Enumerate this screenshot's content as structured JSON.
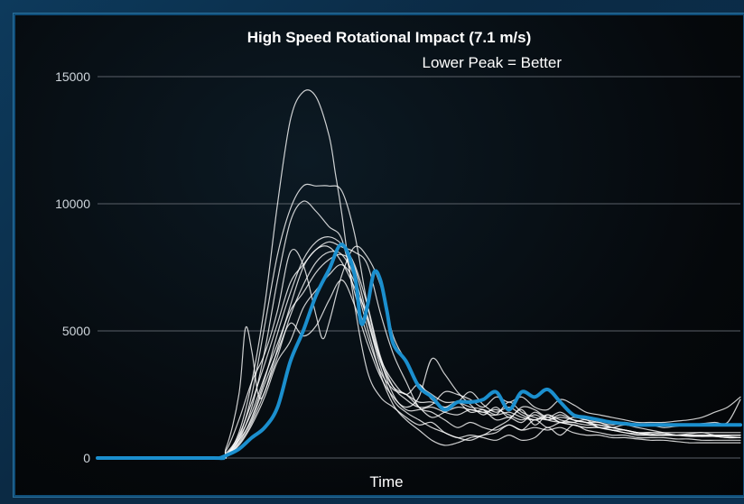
{
  "chart_data": {
    "type": "line",
    "title": "High Speed Rotational Impact (7.1 m/s)",
    "subtitle": "Lower Peak = Better",
    "xlabel": "Time",
    "ylabel": "",
    "ylim": [
      0,
      15000
    ],
    "yticks": [
      0,
      5000,
      10000,
      15000
    ],
    "xlim": [
      0,
      100
    ],
    "grid": true,
    "colors": {
      "highlight": "#1b8fce",
      "other": "#ffffff",
      "grid": "#5a6068"
    },
    "series": [
      {
        "highlight": true,
        "x": [
          0,
          18,
          19,
          20,
          22,
          24,
          26,
          28,
          30,
          32,
          34,
          36,
          38,
          40,
          41,
          42,
          43,
          44,
          45,
          46,
          48,
          50,
          52,
          54,
          56,
          58,
          60,
          62,
          64,
          66,
          68,
          70,
          72,
          74,
          76,
          78,
          80,
          82,
          84,
          86,
          88,
          90,
          92,
          94,
          96,
          98,
          100
        ],
        "y": [
          0,
          0,
          0,
          100,
          350,
          800,
          1200,
          2000,
          3800,
          5000,
          6400,
          7400,
          8400,
          7200,
          5300,
          6000,
          7300,
          7000,
          5800,
          4500,
          3800,
          2800,
          2400,
          1900,
          2200,
          2200,
          2300,
          2600,
          1900,
          2600,
          2400,
          2700,
          2200,
          1700,
          1600,
          1500,
          1400,
          1350,
          1300,
          1300,
          1300,
          1300,
          1300,
          1300,
          1300,
          1300,
          1300
        ]
      },
      {
        "x": [
          0,
          18,
          20,
          22,
          24,
          26,
          28,
          30,
          32,
          34,
          36,
          37,
          38,
          40,
          42,
          44,
          46,
          48,
          50,
          52,
          54,
          56,
          58,
          60,
          62,
          64,
          66,
          68,
          70,
          72,
          74,
          76,
          78,
          80,
          82,
          84,
          86,
          88,
          90,
          92,
          94,
          96,
          98,
          100
        ],
        "y": [
          0,
          0,
          100,
          1000,
          3000,
          6000,
          10000,
          13300,
          14400,
          14200,
          12700,
          11200,
          9600,
          6000,
          3400,
          2400,
          2000,
          1600,
          1300,
          1400,
          1000,
          800,
          700,
          900,
          1000,
          1300,
          1100,
          1500,
          1200,
          1400,
          1400,
          1500,
          1200,
          1200,
          1100,
          1000,
          900,
          900,
          900,
          950,
          1000,
          900,
          850,
          800
        ]
      },
      {
        "x": [
          0,
          18,
          20,
          22,
          24,
          26,
          28,
          30,
          32,
          34,
          36,
          38,
          40,
          42,
          44,
          46,
          48,
          50,
          52,
          54,
          56,
          58,
          60,
          62,
          64,
          66,
          68,
          70,
          72,
          74,
          76,
          78,
          80,
          82,
          84,
          86,
          88,
          90,
          92,
          94,
          96,
          98,
          100
        ],
        "y": [
          0,
          0,
          100,
          800,
          2500,
          5200,
          8000,
          9800,
          10700,
          10700,
          10700,
          10500,
          8800,
          6000,
          3900,
          2500,
          1900,
          1900,
          2000,
          1800,
          1700,
          1900,
          1800,
          1900,
          1700,
          1500,
          1700,
          1500,
          1700,
          1500,
          1400,
          1400,
          1200,
          1100,
          1000,
          950,
          900,
          900,
          900,
          900,
          900,
          900,
          900
        ]
      },
      {
        "x": [
          0,
          18,
          20,
          22,
          24,
          26,
          28,
          30,
          32,
          34,
          36,
          38,
          40,
          42,
          44,
          46,
          48,
          50,
          52,
          54,
          56,
          58,
          60,
          62,
          64,
          66,
          68,
          70,
          72,
          74,
          76,
          78,
          80,
          82,
          84,
          86,
          88,
          90,
          92,
          94,
          96,
          98,
          100
        ],
        "y": [
          0,
          0,
          100,
          700,
          2000,
          4200,
          7000,
          9300,
          10100,
          9700,
          9100,
          8600,
          6500,
          4800,
          3400,
          2700,
          2500,
          2200,
          2200,
          2000,
          2200,
          1800,
          1900,
          1700,
          1800,
          1600,
          1500,
          1700,
          1500,
          1400,
          1300,
          1300,
          1200,
          1100,
          1000,
          1000,
          950,
          900,
          900,
          900,
          900,
          900,
          900
        ]
      },
      {
        "x": [
          0,
          18,
          20,
          22,
          23,
          24,
          25,
          26,
          28,
          30,
          32,
          34,
          36,
          38,
          40,
          42,
          44,
          46,
          48,
          50,
          52,
          54,
          56,
          58,
          60,
          62,
          64,
          66,
          68,
          70,
          72,
          74,
          76,
          78,
          80,
          82,
          84,
          86,
          88,
          90,
          92,
          94,
          96,
          98,
          100
        ],
        "y": [
          0,
          0,
          400,
          2500,
          5100,
          4200,
          2500,
          2600,
          4300,
          6000,
          7500,
          8200,
          8300,
          7700,
          6700,
          5600,
          3800,
          2800,
          2500,
          2000,
          1600,
          1800,
          2000,
          1900,
          1800,
          1700,
          2200,
          1800,
          1600,
          1500,
          1600,
          1500,
          1400,
          1200,
          1100,
          1100,
          1000,
          1000,
          1000,
          1000,
          1000,
          1000,
          1000,
          1000,
          1000
        ]
      },
      {
        "x": [
          0,
          18,
          20,
          22,
          24,
          26,
          28,
          30,
          32,
          34,
          35,
          36,
          38,
          40,
          42,
          44,
          46,
          48,
          50,
          52,
          54,
          56,
          58,
          60,
          62,
          64,
          66,
          68,
          70,
          72,
          74,
          76,
          78,
          80,
          82,
          84,
          86,
          88,
          90,
          92,
          94,
          96,
          98,
          100
        ],
        "y": [
          0,
          0,
          300,
          1500,
          3000,
          4100,
          5800,
          8100,
          7600,
          5600,
          4700,
          5300,
          7200,
          8300,
          7900,
          6800,
          4800,
          3800,
          2900,
          2500,
          2200,
          2200,
          2000,
          1900,
          1500,
          1600,
          1400,
          1800,
          1500,
          1400,
          1300,
          1200,
          1200,
          1100,
          1000,
          900,
          900,
          900,
          900,
          900,
          900,
          900,
          900,
          900
        ]
      },
      {
        "x": [
          0,
          18,
          20,
          22,
          24,
          26,
          28,
          30,
          32,
          34,
          36,
          38,
          40,
          42,
          44,
          46,
          48,
          50,
          52,
          54,
          56,
          58,
          60,
          62,
          64,
          66,
          68,
          70,
          72,
          74,
          76,
          78,
          80,
          82,
          84,
          86,
          88,
          90,
          92,
          94,
          96,
          98,
          100
        ],
        "y": [
          0,
          0,
          200,
          900,
          2200,
          3700,
          5300,
          6900,
          7600,
          8200,
          8500,
          8300,
          8100,
          7600,
          5700,
          4100,
          3000,
          2000,
          1800,
          1500,
          1200,
          1400,
          1200,
          1100,
          1300,
          1100,
          1200,
          1100,
          1200,
          1000,
          900,
          900,
          800,
          800,
          750,
          700,
          700,
          650,
          600,
          600,
          600,
          600,
          600
        ]
      },
      {
        "x": [
          0,
          18,
          20,
          22,
          24,
          26,
          28,
          30,
          32,
          34,
          36,
          38,
          40,
          42,
          44,
          46,
          48,
          50,
          52,
          54,
          56,
          58,
          60,
          62,
          64,
          66,
          68,
          70,
          72,
          74,
          76,
          78,
          80,
          82,
          84,
          86,
          88,
          90,
          92,
          94,
          96,
          98,
          100
        ],
        "y": [
          0,
          0,
          150,
          800,
          1800,
          3200,
          4500,
          5800,
          6500,
          7300,
          7800,
          8000,
          7500,
          5500,
          3600,
          2300,
          1800,
          1500,
          1200,
          1000,
          800,
          900,
          800,
          700,
          900,
          700,
          800,
          1200,
          900,
          1300,
          1100,
          1000,
          900,
          900,
          800,
          800,
          800,
          750,
          750,
          700,
          700,
          700,
          700
        ]
      },
      {
        "x": [
          0,
          18,
          20,
          22,
          24,
          26,
          28,
          30,
          32,
          34,
          36,
          38,
          40,
          42,
          44,
          46,
          48,
          50,
          52,
          54,
          56,
          58,
          60,
          62,
          64,
          66,
          68,
          70,
          72,
          74,
          76,
          78,
          80,
          82,
          84,
          86,
          88,
          90,
          92,
          94,
          96,
          98,
          100
        ],
        "y": [
          0,
          0,
          100,
          500,
          1300,
          2400,
          3800,
          4600,
          5900,
          6600,
          7200,
          7600,
          6900,
          5100,
          3300,
          2100,
          1500,
          1100,
          700,
          500,
          600,
          800,
          900,
          1200,
          1500,
          2000,
          1900,
          1600,
          1800,
          1500,
          1400,
          1300,
          1200,
          1300,
          1200,
          1100,
          1000,
          900,
          900,
          850,
          850,
          800,
          800
        ]
      },
      {
        "x": [
          0,
          18,
          20,
          22,
          24,
          26,
          28,
          30,
          32,
          34,
          36,
          38,
          40,
          42,
          44,
          46,
          48,
          50,
          52,
          54,
          56,
          58,
          60,
          62,
          64,
          66,
          68,
          70,
          72,
          74,
          76,
          78,
          80,
          82,
          84,
          86,
          88,
          90,
          92,
          94,
          96,
          98,
          100
        ],
        "y": [
          0,
          0,
          120,
          700,
          1500,
          2900,
          4200,
          5300,
          4800,
          5200,
          6200,
          7000,
          6000,
          4500,
          3200,
          2400,
          2000,
          2400,
          3900,
          3300,
          2600,
          2100,
          1700,
          2000,
          1600,
          1900,
          1300,
          1700,
          1400,
          1600,
          1500,
          1400,
          1300,
          1400,
          1300,
          1300,
          1200,
          1250,
          1300,
          1350,
          1400,
          1400,
          2300
        ]
      },
      {
        "x": [
          0,
          18,
          20,
          22,
          24,
          26,
          28,
          30,
          32,
          34,
          36,
          38,
          40,
          42,
          44,
          46,
          48,
          50,
          52,
          54,
          56,
          58,
          60,
          62,
          64,
          66,
          68,
          70,
          72,
          74,
          76,
          78,
          80,
          82,
          84,
          86,
          88,
          90,
          92,
          94,
          96,
          98,
          100
        ],
        "y": [
          0,
          0,
          100,
          600,
          1600,
          3100,
          4900,
          6500,
          7800,
          8500,
          8700,
          8400,
          7600,
          6000,
          4000,
          2800,
          2300,
          2000,
          2100,
          2600,
          2500,
          2300,
          2000,
          2400,
          2200,
          2400,
          2000,
          1900,
          2300,
          2100,
          1800,
          1700,
          1600,
          1500,
          1400,
          1400,
          1400,
          1450,
          1500,
          1600,
          1800,
          2000,
          2400
        ]
      },
      {
        "x": [
          0,
          18,
          20,
          22,
          24,
          26,
          28,
          30,
          32,
          34,
          36,
          38,
          40,
          42,
          44,
          46,
          48,
          50,
          52,
          54,
          56,
          58,
          60,
          62,
          64,
          66,
          68,
          70,
          72,
          74,
          76,
          78,
          80,
          82,
          84,
          86,
          88,
          90,
          92,
          94,
          96,
          98,
          100
        ],
        "y": [
          0,
          0,
          100,
          550,
          1400,
          2600,
          4000,
          5600,
          6800,
          7700,
          8100,
          8000,
          7100,
          5400,
          3900,
          3000,
          2500,
          2900,
          2300,
          2000,
          2200,
          2600,
          2100,
          1800,
          2000,
          1700,
          1500,
          1600,
          1400,
          1300,
          1200,
          1200,
          1100,
          1000,
          950,
          900,
          900,
          900,
          850,
          850,
          850,
          800,
          800
        ]
      }
    ]
  }
}
